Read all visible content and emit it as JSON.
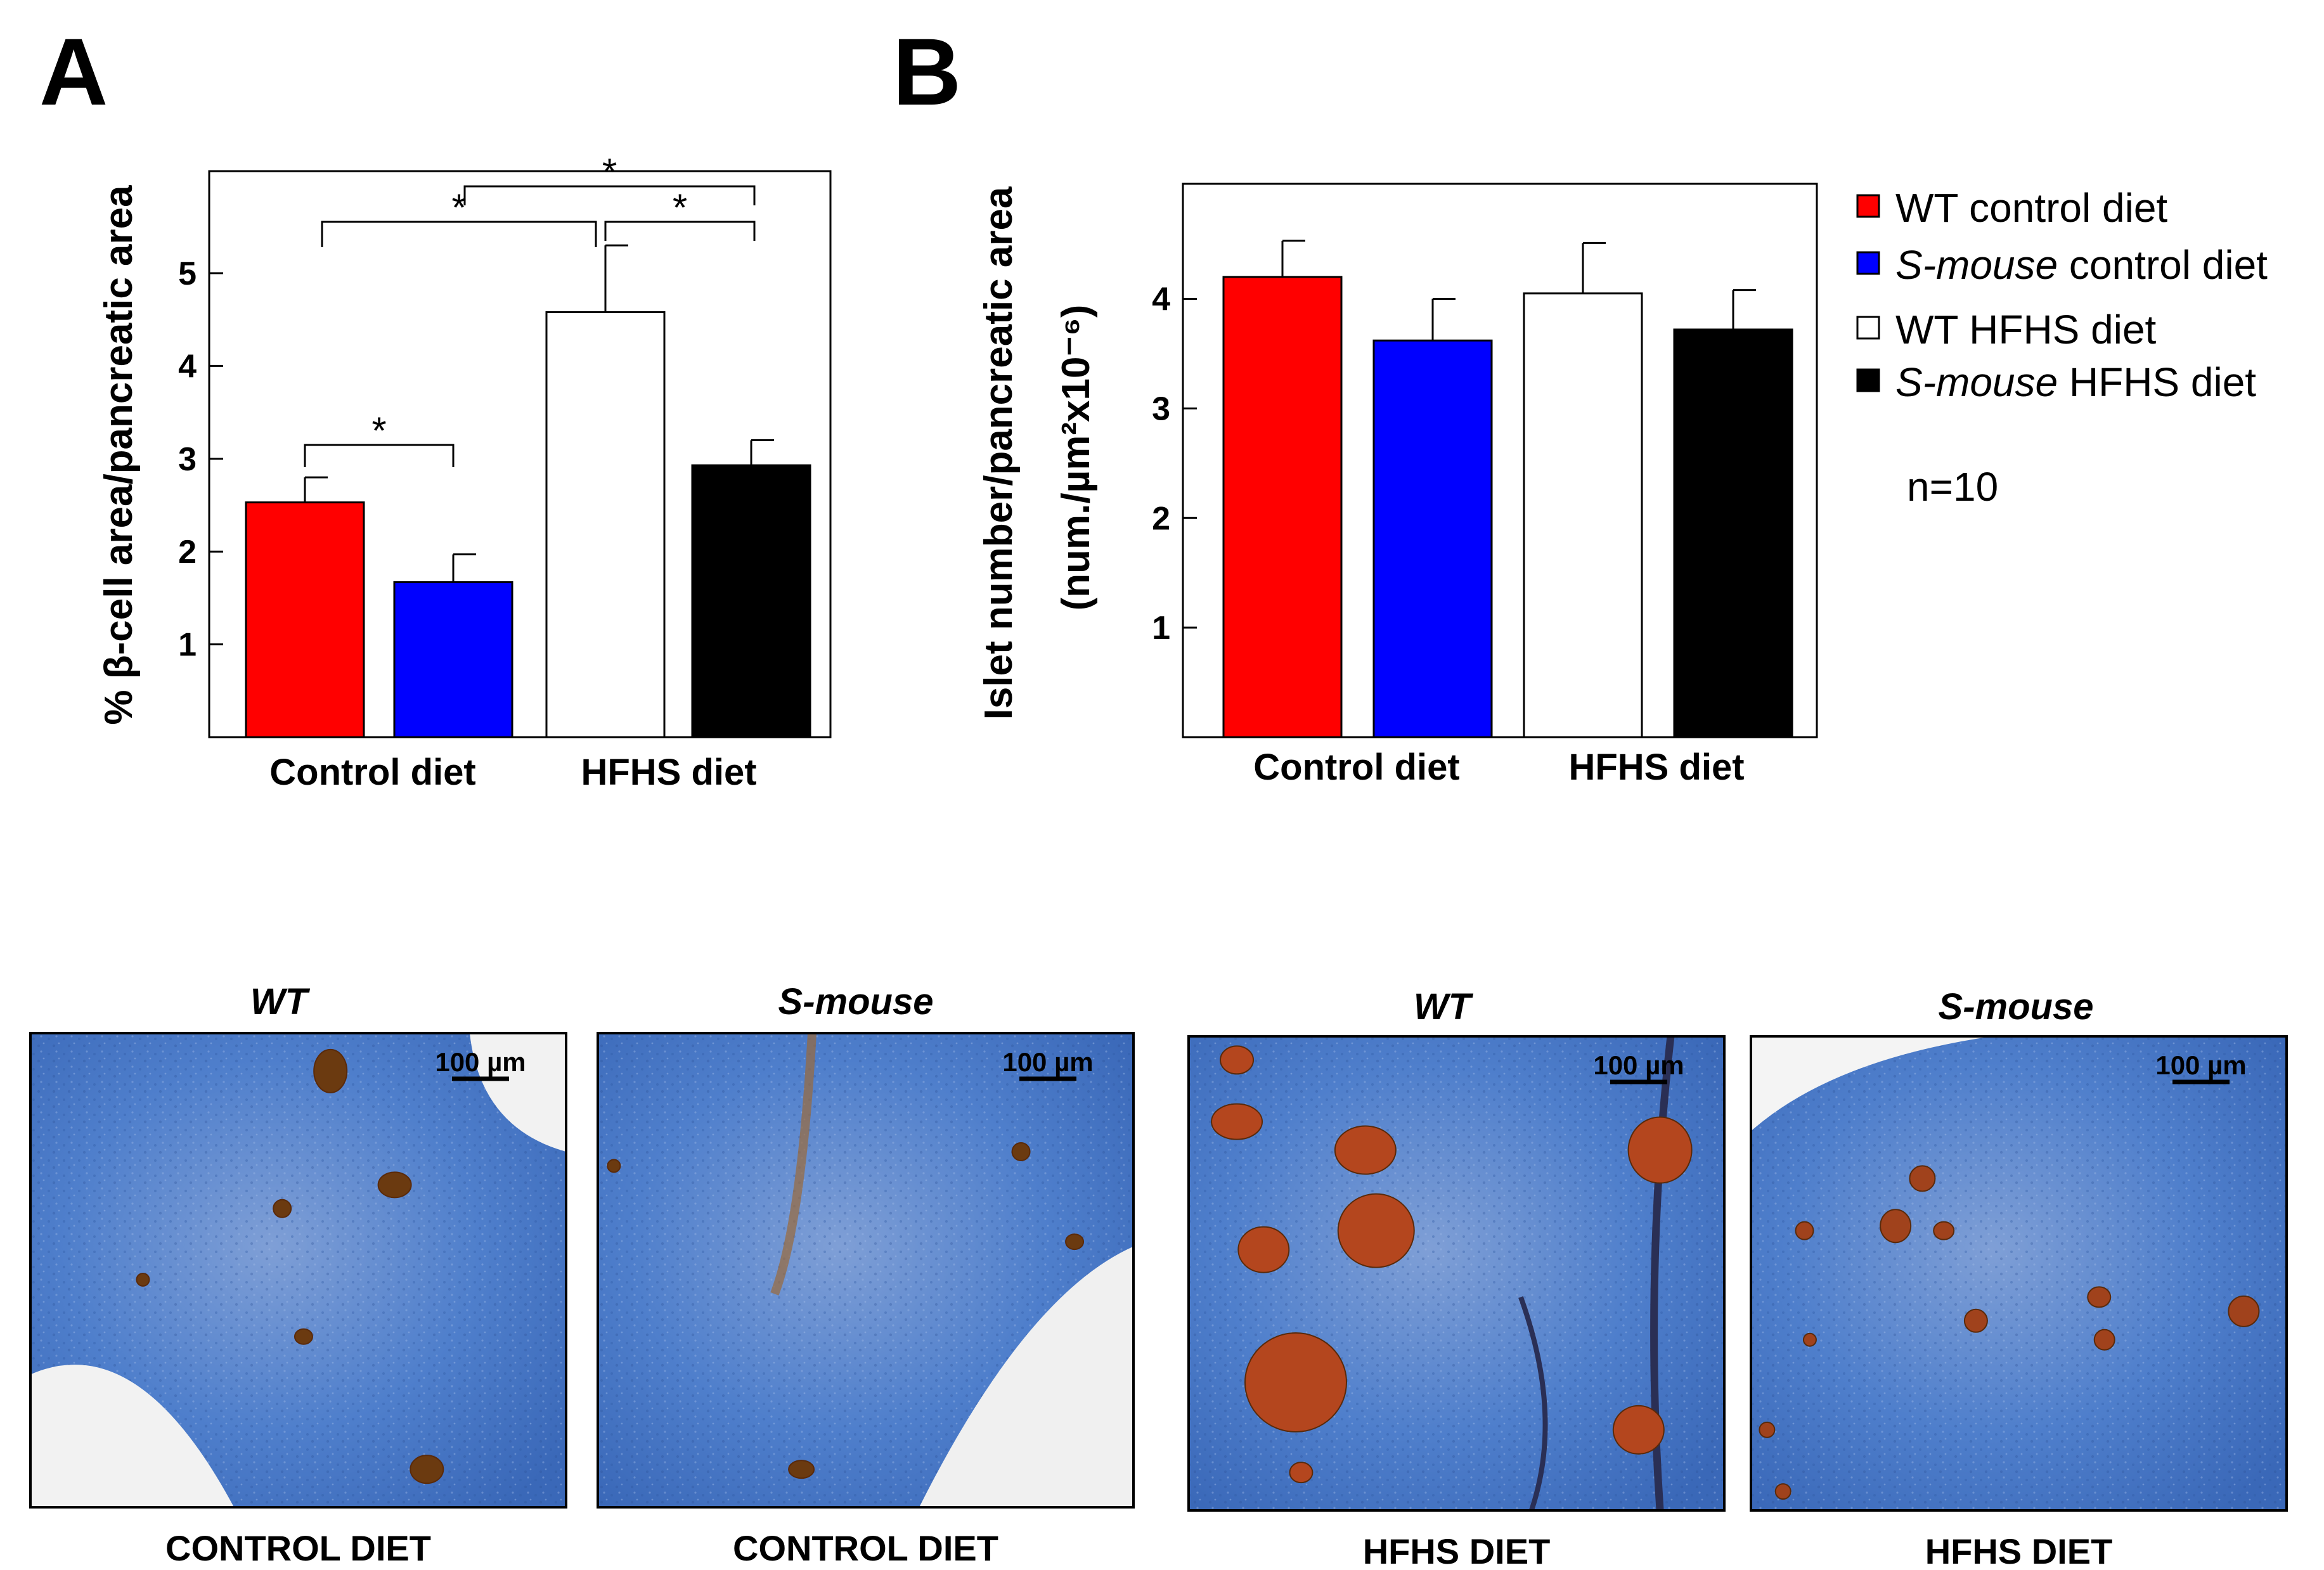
{
  "panels": {
    "a": {
      "letter": "A"
    },
    "b": {
      "letter": "B"
    }
  },
  "legend": {
    "entries": [
      {
        "label_main": "WT",
        "label_rest": " control diet",
        "italic": false,
        "color": "#ff0000"
      },
      {
        "label_main": "S-mouse",
        "label_rest": " control diet",
        "italic": true,
        "color": "#0000ff"
      },
      {
        "label_main": "WT",
        "label_rest": " HFHS diet",
        "italic": false,
        "color": "#ffffff"
      },
      {
        "label_main": "S-mouse",
        "label_rest": " HFHS diet",
        "italic": true,
        "color": "#000000"
      }
    ],
    "n_text": "n=10"
  },
  "chart_data": [
    {
      "type": "bar",
      "panel": "A",
      "ylabel": "% β-cell area/pancreatic area",
      "ylim": [
        0,
        6.1
      ],
      "yticks": [
        "1",
        "2",
        "3",
        "4",
        "5"
      ],
      "groups": [
        "Control diet",
        "HFHS diet"
      ],
      "series": [
        {
          "name": "WT control diet",
          "color": "#ff0000",
          "value": 2.53,
          "error": 0.27
        },
        {
          "name": "S-mouse control diet",
          "color": "#0000ff",
          "value": 1.67,
          "error": 0.3
        },
        {
          "name": "WT HFHS diet",
          "color": "#ffffff",
          "value": 4.58,
          "error": 0.72
        },
        {
          "name": "S-mouse HFHS diet",
          "color": "#000000",
          "value": 2.93,
          "error": 0.27
        }
      ],
      "significance": [
        {
          "from": 0,
          "to": 1,
          "label": "*"
        },
        {
          "from": 0,
          "to": 2,
          "label": "*"
        },
        {
          "from": 2,
          "to": 3,
          "label": "*"
        },
        {
          "from": 1,
          "to": 3,
          "label": "*"
        }
      ]
    },
    {
      "type": "bar",
      "panel": "B",
      "ylabel": "Islet number/pancreatic area",
      "ylabel2": "(num./µm²x10⁻⁶)",
      "ylim": [
        0,
        5.05
      ],
      "yticks": [
        "1",
        "2",
        "3",
        "4"
      ],
      "groups": [
        "Control diet",
        "HFHS diet"
      ],
      "series": [
        {
          "name": "WT control diet",
          "color": "#ff0000",
          "value": 4.2,
          "error": 0.33
        },
        {
          "name": "S-mouse control diet",
          "color": "#0000ff",
          "value": 3.62,
          "error": 0.38
        },
        {
          "name": "WT HFHS diet",
          "color": "#ffffff",
          "value": 4.05,
          "error": 0.46
        },
        {
          "name": "S-mouse HFHS diet",
          "color": "#000000",
          "value": 3.72,
          "error": 0.36
        }
      ]
    }
  ],
  "micrographs": [
    {
      "title": "WT",
      "caption": "CONTROL DIET",
      "scale": "100 µm",
      "islets": "small"
    },
    {
      "title": "S-mouse",
      "caption": "CONTROL DIET",
      "scale": "100 µm",
      "islets": "few"
    },
    {
      "title": "WT",
      "caption": "HFHS DIET",
      "scale": "100 µm",
      "islets": "large"
    },
    {
      "title": "S-mouse",
      "caption": "HFHS DIET",
      "scale": "100 µm",
      "islets": "medium"
    }
  ]
}
